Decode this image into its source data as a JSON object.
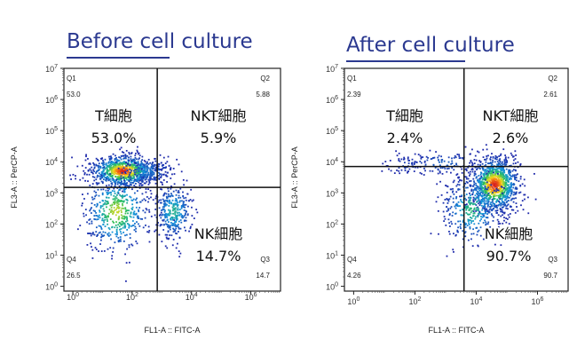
{
  "chart_data": [
    {
      "type": "scatter",
      "title": "Before cell culture",
      "xlabel": "FL1-A :: FITC-A",
      "ylabel": "FL3-A :: PerCP-A",
      "x_scale": "log",
      "y_scale": "log",
      "xlim": [
        0.5,
        10000000
      ],
      "ylim": [
        0.7,
        10000000
      ],
      "x_ticks": [
        "10^0",
        "10^2",
        "10^4",
        "10^6"
      ],
      "y_ticks": [
        "10^0",
        "10^1",
        "10^2",
        "10^3",
        "10^4",
        "10^5",
        "10^6",
        "10^7"
      ],
      "gate": {
        "x": 700,
        "y": 1500
      },
      "quadrants": [
        {
          "id": "Q1",
          "value": "53.0",
          "label": "T細胞",
          "percent": "53.0%"
        },
        {
          "id": "Q2",
          "value": "5.88",
          "label": "NKT細胞",
          "percent": "5.9%"
        },
        {
          "id": "Q3",
          "value": "14.7",
          "label": "NK細胞",
          "percent": "14.7%"
        },
        {
          "id": "Q4",
          "value": "26.5",
          "label": "",
          "percent": ""
        }
      ],
      "populations": [
        {
          "x": 50,
          "y": 5000,
          "n": 900,
          "sx": 0.35,
          "sy": 0.16
        },
        {
          "x": 300,
          "y": 5000,
          "n": 160,
          "sx": 0.3,
          "sy": 0.14
        },
        {
          "x": 2500,
          "y": 250,
          "n": 320,
          "sx": 0.2,
          "sy": 0.28
        },
        {
          "x": 30,
          "y": 250,
          "n": 500,
          "sx": 0.35,
          "sy": 0.4
        }
      ]
    },
    {
      "type": "scatter",
      "title": "After cell culture",
      "xlabel": "FL1-A :: FITC-A",
      "ylabel": "FL3-A :: PerCP-A",
      "x_scale": "log",
      "y_scale": "log",
      "xlim": [
        0.5,
        10000000
      ],
      "ylim": [
        0.7,
        10000000
      ],
      "x_ticks": [
        "10^0",
        "10^2",
        "10^4",
        "10^6"
      ],
      "y_ticks": [
        "10^0",
        "10^1",
        "10^2",
        "10^3",
        "10^4",
        "10^5",
        "10^6",
        "10^7"
      ],
      "gate": {
        "x": 4000,
        "y": 7000
      },
      "quadrants": [
        {
          "id": "Q1",
          "value": "2.39",
          "label": "T細胞",
          "percent": "2.4%"
        },
        {
          "id": "Q2",
          "value": "2.61",
          "label": "NKT細胞",
          "percent": "2.6%"
        },
        {
          "id": "Q3",
          "value": "90.7",
          "label": "NK細胞",
          "percent": "90.7%"
        },
        {
          "id": "Q4",
          "value": "4.26",
          "label": "",
          "percent": ""
        }
      ],
      "populations": [
        {
          "x": 40000,
          "y": 1800,
          "n": 1100,
          "sx": 0.25,
          "sy": 0.28
        },
        {
          "x": 7000,
          "y": 300,
          "n": 350,
          "sx": 0.3,
          "sy": 0.35
        },
        {
          "x": 800,
          "y": 9000,
          "n": 110,
          "sx": 0.45,
          "sy": 0.12
        },
        {
          "x": 50,
          "y": 8000,
          "n": 50,
          "sx": 0.2,
          "sy": 0.1
        }
      ]
    }
  ]
}
